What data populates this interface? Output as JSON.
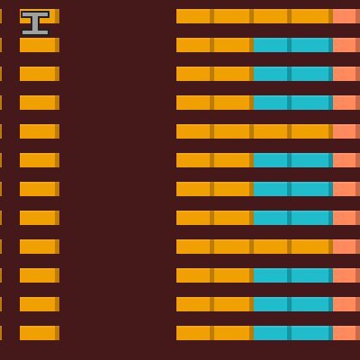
{
  "colors": {
    "background": "#45191a",
    "orange": "#f0a000",
    "cyan": "#20bccc",
    "salmon": "#ff8a5e",
    "cursor": "#a0a0a0",
    "cursor_outline": "#202020"
  },
  "rows": [
    [
      "orange",
      "orange",
      "orange",
      "orange",
      "orange",
      "orange",
      "salmon"
    ],
    [
      "orange",
      "orange",
      "orange",
      "orange",
      "cyan",
      "cyan",
      "salmon"
    ],
    [
      "orange",
      "orange",
      "orange",
      "orange",
      "cyan",
      "cyan",
      "salmon"
    ],
    [
      "orange",
      "orange",
      "orange",
      "orange",
      "cyan",
      "cyan",
      "salmon"
    ],
    [
      "orange",
      "orange",
      "orange",
      "orange",
      "orange",
      "orange",
      "salmon"
    ],
    [
      "orange",
      "orange",
      "orange",
      "orange",
      "cyan",
      "cyan",
      "salmon"
    ],
    [
      "orange",
      "orange",
      "orange",
      "orange",
      "cyan",
      "cyan",
      "salmon"
    ],
    [
      "orange",
      "orange",
      "orange",
      "orange",
      "cyan",
      "cyan",
      "salmon"
    ],
    [
      "orange",
      "orange",
      "orange",
      "orange",
      "orange",
      "orange",
      "salmon"
    ],
    [
      "orange",
      "orange",
      "orange",
      "orange",
      "cyan",
      "cyan",
      "salmon"
    ],
    [
      "orange",
      "orange",
      "orange",
      "orange",
      "cyan",
      "cyan",
      "salmon"
    ],
    [
      "orange",
      "orange",
      "orange",
      "orange",
      "cyan",
      "cyan",
      "salmon"
    ]
  ],
  "cursor_icon": "i-beam-icon"
}
